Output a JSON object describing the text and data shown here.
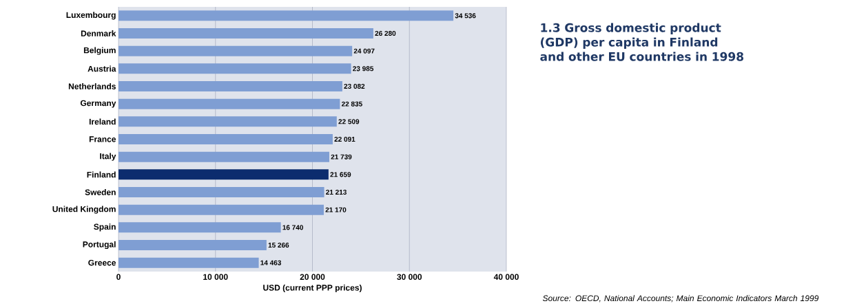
{
  "chart_data": {
    "type": "bar",
    "orientation": "horizontal",
    "title": "1.3 Gross domestic product (GDP) per capita in Finland and other EU countries in 1998",
    "xlabel": "USD (current PPP prices)",
    "annotations": [
      "Source: OECD, National Accounts; Main Economic Indicators March 1999"
    ],
    "categories": [
      "Luxembourg",
      "Denmark",
      "Belgium",
      "Austria",
      "Netherlands",
      "Germany",
      "Ireland",
      "France",
      "Italy",
      "Finland",
      "Sweden",
      "United Kingdom",
      "Spain",
      "Portugal",
      "Greece"
    ],
    "values": [
      34536,
      26280,
      24097,
      23985,
      23082,
      22835,
      22509,
      22091,
      21739,
      21659,
      21213,
      21170,
      16740,
      15266,
      14463
    ],
    "value_labels": [
      "34 536",
      "26 280",
      "24 097",
      "23 985",
      "23 082",
      "22 835",
      "22 509",
      "22 091",
      "21 739",
      "21 659",
      "21 213",
      "21 170",
      "16 740",
      "15 266",
      "14 463"
    ],
    "colors": [
      "#7f9ed3",
      "#7f9ed3",
      "#7f9ed3",
      "#7f9ed3",
      "#7f9ed3",
      "#7f9ed3",
      "#7f9ed3",
      "#7f9ed3",
      "#7f9ed3",
      "#0c2c6e",
      "#7f9ed3",
      "#7f9ed3",
      "#7f9ed3",
      "#7f9ed3",
      "#7f9ed3"
    ],
    "xlim": [
      0,
      40000
    ],
    "xticks": [
      {
        "value": 0,
        "label": "0"
      },
      {
        "value": 10000,
        "label": "10 000"
      },
      {
        "value": 20000,
        "label": "20 000"
      },
      {
        "value": 30000,
        "label": "30 000"
      },
      {
        "value": 40000,
        "label": "40 000"
      }
    ],
    "grid": "x"
  }
}
